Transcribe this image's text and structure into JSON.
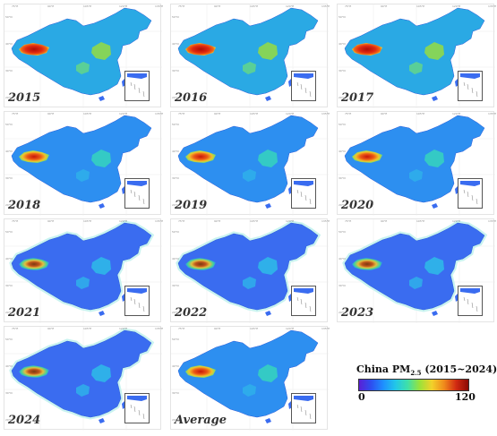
{
  "panels": [
    {
      "label": "2015",
      "pollution_level": 1.0
    },
    {
      "label": "2016",
      "pollution_level": 0.95
    },
    {
      "label": "2017",
      "pollution_level": 0.9
    },
    {
      "label": "2018",
      "pollution_level": 0.7
    },
    {
      "label": "2019",
      "pollution_level": 0.62
    },
    {
      "label": "2020",
      "pollution_level": 0.55
    },
    {
      "label": "2021",
      "pollution_level": 0.45
    },
    {
      "label": "2022",
      "pollution_level": 0.4
    },
    {
      "label": "2023",
      "pollution_level": 0.42
    },
    {
      "label": "2024",
      "pollution_level": 0.38
    },
    {
      "label": "Average",
      "pollution_level": 0.6
    }
  ],
  "legend": {
    "title_main": "China PM",
    "title_sub": "2.5",
    "title_range": "(2015~2024)",
    "min_label": "0",
    "max_label": "120",
    "colors": [
      "#5a1fd6",
      "#2d4ff0",
      "#1e90ff",
      "#22c7e8",
      "#3fe0a8",
      "#9be23a",
      "#f2d12a",
      "#f08a1c",
      "#d12a12",
      "#8a0a05"
    ]
  },
  "ticks": {
    "lon": [
      "75°E",
      "90°E",
      "105°E",
      "120°E",
      "135°E"
    ],
    "lat": [
      "50°N",
      "40°N",
      "30°N",
      "20°N"
    ]
  }
}
